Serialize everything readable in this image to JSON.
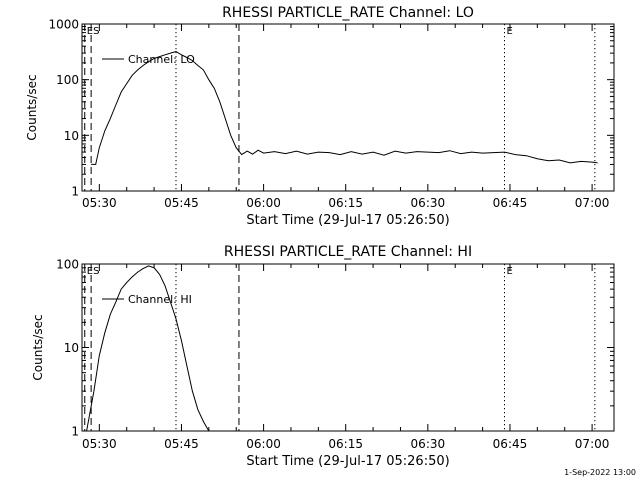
{
  "footer": {
    "timestamp": "1-Sep-2022 13:00"
  },
  "chart_data": [
    {
      "type": "line",
      "title": "RHESSI PARTICLE_RATE Channel: LO",
      "xlabel": "Start Time (29-Jul-17 05:26:50)",
      "ylabel": "Counts/sec",
      "y_scale": "log",
      "ylim": [
        1,
        1000
      ],
      "xlim": [
        "05:26:50",
        "07:04:00"
      ],
      "x_ticks": [
        "05:30",
        "05:45",
        "06:00",
        "06:15",
        "06:30",
        "06:45",
        "07:00"
      ],
      "y_ticks": [
        "1",
        "10",
        "100",
        "1000"
      ],
      "grid": false,
      "legend": "top-left",
      "markers": [
        {
          "time": "05:28:30",
          "style": "dashed",
          "label": "S"
        },
        {
          "time": "05:27:20",
          "style": "dashed",
          "label": "E"
        },
        {
          "time": "05:44:00",
          "style": "dotted",
          "label": ""
        },
        {
          "time": "05:55:30",
          "style": "dashed",
          "label": ""
        },
        {
          "time": "06:44:00",
          "style": "dotted",
          "label": "E"
        },
        {
          "time": "07:00:30",
          "style": "dotted",
          "label": ""
        }
      ],
      "series": [
        {
          "name": "Channel: LO",
          "points": [
            [
              "05:28:30",
              3
            ],
            [
              "05:29:20",
              3
            ],
            [
              "05:30:00",
              6
            ],
            [
              "05:31:00",
              12
            ],
            [
              "05:32:00",
              20
            ],
            [
              "05:33:00",
              35
            ],
            [
              "05:34:00",
              60
            ],
            [
              "05:35:00",
              85
            ],
            [
              "05:36:00",
              120
            ],
            [
              "05:37:00",
              150
            ],
            [
              "05:38:00",
              180
            ],
            [
              "05:39:00",
              210
            ],
            [
              "05:40:00",
              240
            ],
            [
              "05:41:00",
              260
            ],
            [
              "05:42:00",
              280
            ],
            [
              "05:43:00",
              300
            ],
            [
              "05:44:00",
              320
            ],
            [
              "05:45:00",
              280
            ],
            [
              "05:46:00",
              250
            ],
            [
              "05:47:00",
              220
            ],
            [
              "05:48:00",
              180
            ],
            [
              "05:49:00",
              150
            ],
            [
              "05:50:00",
              100
            ],
            [
              "05:51:00",
              70
            ],
            [
              "05:52:00",
              40
            ],
            [
              "05:53:00",
              20
            ],
            [
              "05:54:00",
              10
            ],
            [
              "05:55:00",
              6
            ],
            [
              "05:56:00",
              4.5
            ],
            [
              "05:57:00",
              5.2
            ],
            [
              "05:58:00",
              4.6
            ],
            [
              "05:59:00",
              5.4
            ],
            [
              "06:00:00",
              4.8
            ],
            [
              "06:02:00",
              5.1
            ],
            [
              "06:04:00",
              4.7
            ],
            [
              "06:06:00",
              5.2
            ],
            [
              "06:08:00",
              4.6
            ],
            [
              "06:10:00",
              5.0
            ],
            [
              "06:12:00",
              4.9
            ],
            [
              "06:14:00",
              4.5
            ],
            [
              "06:16:00",
              5.1
            ],
            [
              "06:18:00",
              4.6
            ],
            [
              "06:20:00",
              5.0
            ],
            [
              "06:22:00",
              4.4
            ],
            [
              "06:24:00",
              5.2
            ],
            [
              "06:26:00",
              4.8
            ],
            [
              "06:28:00",
              5.1
            ],
            [
              "06:30:00",
              5.0
            ],
            [
              "06:32:00",
              4.9
            ],
            [
              "06:34:00",
              5.3
            ],
            [
              "06:36:00",
              4.7
            ],
            [
              "06:38:00",
              5.0
            ],
            [
              "06:40:00",
              4.8
            ],
            [
              "06:42:00",
              4.9
            ],
            [
              "06:44:00",
              5.0
            ],
            [
              "06:46:00",
              4.5
            ],
            [
              "06:48:00",
              4.3
            ],
            [
              "06:50:00",
              3.8
            ],
            [
              "06:52:00",
              3.5
            ],
            [
              "06:54:00",
              3.6
            ],
            [
              "06:56:00",
              3.2
            ],
            [
              "06:58:00",
              3.4
            ],
            [
              "07:00:00",
              3.3
            ],
            [
              "07:01:00",
              3.2
            ]
          ]
        }
      ]
    },
    {
      "type": "line",
      "title": "RHESSI PARTICLE_RATE Channel: HI",
      "xlabel": "Start Time (29-Jul-17 05:26:50)",
      "ylabel": "Counts/sec",
      "y_scale": "log",
      "ylim": [
        1,
        100
      ],
      "xlim": [
        "05:26:50",
        "07:04:00"
      ],
      "x_ticks": [
        "05:30",
        "05:45",
        "06:00",
        "06:15",
        "06:30",
        "06:45",
        "07:00"
      ],
      "y_ticks": [
        "1",
        "10",
        "100"
      ],
      "grid": false,
      "legend": "top-left",
      "markers": [
        {
          "time": "05:28:30",
          "style": "dashed",
          "label": "S"
        },
        {
          "time": "05:27:20",
          "style": "dashed",
          "label": "E"
        },
        {
          "time": "05:44:00",
          "style": "dotted",
          "label": ""
        },
        {
          "time": "05:55:30",
          "style": "dashed",
          "label": ""
        },
        {
          "time": "06:44:00",
          "style": "dotted",
          "label": "E"
        },
        {
          "time": "07:00:30",
          "style": "dotted",
          "label": ""
        }
      ],
      "series": [
        {
          "name": "Channel: HI",
          "points": [
            [
              "05:27:40",
              1
            ],
            [
              "05:29:00",
              3
            ],
            [
              "05:30:00",
              8
            ],
            [
              "05:31:00",
              15
            ],
            [
              "05:32:00",
              25
            ],
            [
              "05:33:00",
              35
            ],
            [
              "05:34:00",
              50
            ],
            [
              "05:35:00",
              60
            ],
            [
              "05:36:00",
              70
            ],
            [
              "05:37:00",
              80
            ],
            [
              "05:38:00",
              88
            ],
            [
              "05:39:00",
              95
            ],
            [
              "05:40:00",
              90
            ],
            [
              "05:41:00",
              75
            ],
            [
              "05:42:00",
              55
            ],
            [
              "05:43:00",
              35
            ],
            [
              "05:44:00",
              22
            ],
            [
              "05:45:00",
              12
            ],
            [
              "05:46:00",
              6
            ],
            [
              "05:47:00",
              3
            ],
            [
              "05:48:00",
              1.8
            ],
            [
              "05:49:00",
              1.3
            ],
            [
              "05:50:00",
              1.0
            ]
          ]
        }
      ]
    }
  ]
}
